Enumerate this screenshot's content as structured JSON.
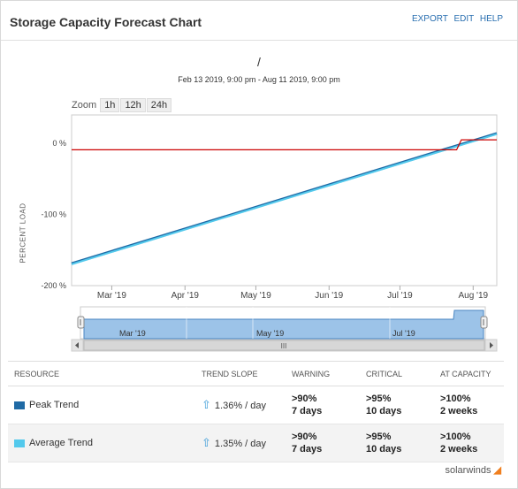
{
  "header": {
    "title": "Storage Capacity Forecast Chart",
    "actions": [
      "EXPORT",
      "EDIT",
      "HELP"
    ]
  },
  "chart_header": {
    "title": "/",
    "subtitle": "Feb 13 2019, 9:00 pm - Aug 11 2019, 9:00 pm"
  },
  "zoom": {
    "label": "Zoom",
    "options": [
      "1h",
      "12h",
      "24h"
    ]
  },
  "chart_data": {
    "type": "line",
    "ylabel": "PERCENT LOAD",
    "ylim": [
      -200,
      40
    ],
    "yticks": [
      "0 %",
      "-100 %",
      "-200 %"
    ],
    "ytick_values": [
      0,
      -100,
      -200
    ],
    "xticks": [
      "Mar '19",
      "Apr '19",
      "May '19",
      "Jun '19",
      "Jul '19",
      "Aug '19"
    ],
    "xtick_days": [
      17,
      48,
      78,
      109,
      139,
      170
    ],
    "x_days_range": [
      0,
      180
    ],
    "series": [
      {
        "name": "Peak Trend",
        "color": "#1f6aa5",
        "points": [
          [
            0,
            -169
          ],
          [
            180,
            14
          ]
        ]
      },
      {
        "name": "Average Trend",
        "color": "#53c9ec",
        "points": [
          [
            0,
            -170
          ],
          [
            180,
            13
          ]
        ]
      },
      {
        "color": "#cc0000",
        "points": [
          [
            0,
            -9
          ],
          [
            163,
            -9
          ],
          [
            165,
            5
          ],
          [
            180,
            5
          ]
        ]
      }
    ]
  },
  "navigator": {
    "labels": [
      "Mar '19",
      "May '19",
      "Jul '19"
    ],
    "scroll_glyph": "III"
  },
  "table": {
    "headers": [
      "RESOURCE",
      "TREND SLOPE",
      "WARNING",
      "CRITICAL",
      "AT CAPACITY"
    ],
    "rows": [
      {
        "name": "Peak Trend",
        "color": "#1f6aa5",
        "slope": "1.36% / day",
        "warning": [
          ">90%",
          "7 days"
        ],
        "critical": [
          ">95%",
          "10 days"
        ],
        "capacity": [
          ">100%",
          "2 weeks"
        ]
      },
      {
        "name": "Average Trend",
        "color": "#53c9ec",
        "slope": "1.35% / day",
        "warning": [
          ">90%",
          "7 days"
        ],
        "critical": [
          ">95%",
          "10 days"
        ],
        "capacity": [
          ">100%",
          "2 weeks"
        ]
      }
    ]
  },
  "logo": "solarwinds"
}
